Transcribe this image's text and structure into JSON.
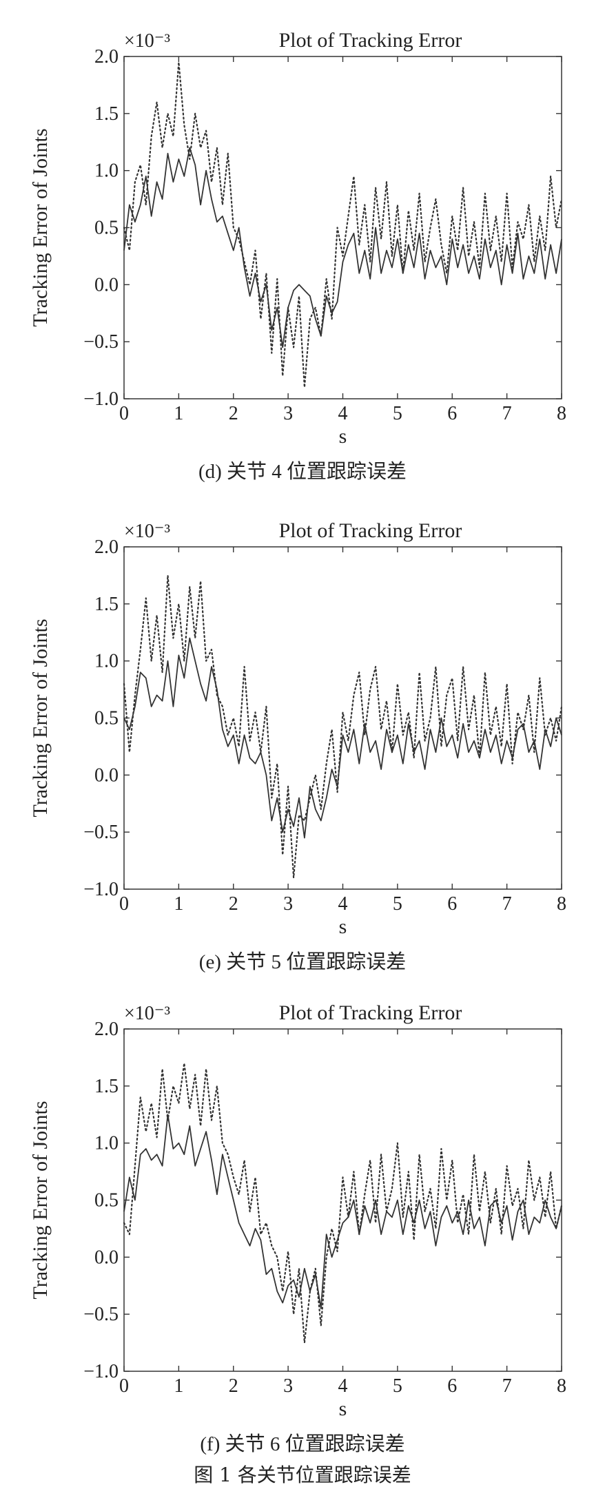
{
  "figure_caption": "图 1   各关节位置跟踪误差",
  "chart_data": [
    {
      "type": "line",
      "title": "Plot of Tracking Error",
      "scale_note": "×10⁻³",
      "xlabel": "s",
      "ylabel": "Tracking Error of Joints",
      "xlim": [
        0,
        8
      ],
      "ylim": [
        -1.0,
        2.0
      ],
      "xticks": [
        "0",
        "1",
        "2",
        "3",
        "4",
        "5",
        "6",
        "7",
        "8"
      ],
      "yticks": [
        "2.0",
        "1.5",
        "1.0",
        "0.5",
        "0.0",
        "−0.5",
        "−1.0"
      ],
      "grid": false,
      "caption": "(d) 关节 4 位置跟踪误差",
      "series": [
        {
          "style": "solid",
          "color": "#333333",
          "x": [
            0,
            0.1,
            0.2,
            0.3,
            0.4,
            0.5,
            0.6,
            0.7,
            0.8,
            0.9,
            1.0,
            1.1,
            1.2,
            1.3,
            1.4,
            1.5,
            1.6,
            1.7,
            1.8,
            1.9,
            2.0,
            2.1,
            2.2,
            2.3,
            2.4,
            2.5,
            2.6,
            2.7,
            2.8,
            2.9,
            3.0,
            3.1,
            3.2,
            3.3,
            3.4,
            3.5,
            3.6,
            3.7,
            3.8,
            3.9,
            4.0,
            4.1,
            4.2,
            4.3,
            4.4,
            4.5,
            4.6,
            4.7,
            4.8,
            4.9,
            5.0,
            5.1,
            5.2,
            5.3,
            5.4,
            5.5,
            5.6,
            5.7,
            5.8,
            5.9,
            6.0,
            6.1,
            6.2,
            6.3,
            6.4,
            6.5,
            6.6,
            6.7,
            6.8,
            6.9,
            7.0,
            7.1,
            7.2,
            7.3,
            7.4,
            7.5,
            7.6,
            7.7,
            7.8,
            7.9,
            8.0
          ],
          "y": [
            0.3,
            0.7,
            0.55,
            0.7,
            0.95,
            0.6,
            0.9,
            0.75,
            1.15,
            0.9,
            1.1,
            0.95,
            1.2,
            1.05,
            0.7,
            1.0,
            0.75,
            0.55,
            0.6,
            0.45,
            0.3,
            0.5,
            0.15,
            -0.1,
            0.1,
            -0.15,
            0.0,
            -0.4,
            -0.2,
            -0.55,
            -0.2,
            -0.05,
            0.0,
            -0.05,
            -0.1,
            -0.3,
            -0.45,
            -0.1,
            -0.25,
            -0.15,
            0.2,
            0.35,
            0.45,
            0.1,
            0.3,
            0.05,
            0.5,
            0.1,
            0.3,
            0.15,
            0.4,
            0.1,
            0.35,
            0.15,
            0.45,
            0.05,
            0.3,
            0.15,
            0.25,
            0.0,
            0.4,
            0.15,
            0.35,
            0.1,
            0.25,
            0.05,
            0.4,
            0.15,
            0.3,
            0.0,
            0.35,
            0.1,
            0.45,
            0.05,
            0.25,
            0.1,
            0.4,
            0.05,
            0.35,
            0.1,
            0.4
          ]
        },
        {
          "style": "dotted",
          "color": "#333333",
          "x": [
            0,
            0.1,
            0.2,
            0.3,
            0.4,
            0.5,
            0.6,
            0.7,
            0.8,
            0.9,
            1.0,
            1.1,
            1.2,
            1.3,
            1.4,
            1.5,
            1.6,
            1.7,
            1.8,
            1.9,
            2.0,
            2.1,
            2.2,
            2.3,
            2.4,
            2.5,
            2.6,
            2.7,
            2.8,
            2.9,
            3.0,
            3.1,
            3.2,
            3.3,
            3.4,
            3.5,
            3.6,
            3.7,
            3.8,
            3.9,
            4.0,
            4.1,
            4.2,
            4.3,
            4.4,
            4.5,
            4.6,
            4.7,
            4.8,
            4.9,
            5.0,
            5.1,
            5.2,
            5.3,
            5.4,
            5.5,
            5.6,
            5.7,
            5.8,
            5.9,
            6.0,
            6.1,
            6.2,
            6.3,
            6.4,
            6.5,
            6.6,
            6.7,
            6.8,
            6.9,
            7.0,
            7.1,
            7.2,
            7.3,
            7.4,
            7.5,
            7.6,
            7.7,
            7.8,
            7.9,
            8.0
          ],
          "y": [
            0.5,
            0.3,
            0.9,
            1.05,
            0.7,
            1.3,
            1.6,
            1.2,
            1.5,
            1.3,
            1.95,
            1.4,
            1.1,
            1.5,
            1.2,
            1.35,
            0.9,
            1.2,
            0.7,
            1.15,
            0.5,
            0.4,
            0.2,
            0.0,
            0.3,
            -0.3,
            0.1,
            -0.6,
            0.05,
            -0.8,
            -0.2,
            -0.55,
            -0.1,
            -0.9,
            -0.3,
            -0.2,
            -0.45,
            0.05,
            -0.3,
            0.5,
            0.25,
            0.6,
            0.95,
            0.35,
            0.7,
            0.2,
            0.85,
            0.4,
            0.9,
            0.25,
            0.7,
            0.1,
            0.65,
            0.3,
            0.8,
            0.2,
            0.5,
            0.75,
            0.35,
            0.1,
            0.6,
            0.3,
            0.85,
            0.25,
            0.55,
            0.15,
            0.8,
            0.3,
            0.6,
            0.2,
            0.8,
            0.15,
            0.55,
            0.4,
            0.7,
            0.2,
            0.6,
            0.3,
            0.95,
            0.5,
            0.75
          ]
        }
      ]
    },
    {
      "type": "line",
      "title": "Plot of Tracking Error",
      "scale_note": "×10⁻³",
      "xlabel": "s",
      "ylabel": "Tracking Error of Joints",
      "xlim": [
        0,
        8
      ],
      "ylim": [
        -1.0,
        2.0
      ],
      "xticks": [
        "0",
        "1",
        "2",
        "3",
        "4",
        "5",
        "6",
        "7",
        "8"
      ],
      "yticks": [
        "2.0",
        "1.5",
        "1.0",
        "0.5",
        "0.0",
        "−0.5",
        "−1.0"
      ],
      "grid": false,
      "caption": "(e) 关节 5 位置跟踪误差",
      "series": [
        {
          "style": "solid",
          "color": "#333333",
          "x": [
            0,
            0.1,
            0.2,
            0.3,
            0.4,
            0.5,
            0.6,
            0.7,
            0.8,
            0.9,
            1.0,
            1.1,
            1.2,
            1.3,
            1.4,
            1.5,
            1.6,
            1.7,
            1.8,
            1.9,
            2.0,
            2.1,
            2.2,
            2.3,
            2.4,
            2.5,
            2.6,
            2.7,
            2.8,
            2.9,
            3.0,
            3.1,
            3.2,
            3.3,
            3.4,
            3.5,
            3.6,
            3.7,
            3.8,
            3.9,
            4.0,
            4.1,
            4.2,
            4.3,
            4.4,
            4.5,
            4.6,
            4.7,
            4.8,
            4.9,
            5.0,
            5.1,
            5.2,
            5.3,
            5.4,
            5.5,
            5.6,
            5.7,
            5.8,
            5.9,
            6.0,
            6.1,
            6.2,
            6.3,
            6.4,
            6.5,
            6.6,
            6.7,
            6.8,
            6.9,
            7.0,
            7.1,
            7.2,
            7.3,
            7.4,
            7.5,
            7.6,
            7.7,
            7.8,
            7.9,
            8.0
          ],
          "y": [
            0.5,
            0.4,
            0.6,
            0.9,
            0.85,
            0.6,
            0.7,
            0.65,
            1.0,
            0.6,
            1.05,
            0.85,
            1.2,
            1.0,
            0.8,
            0.65,
            0.95,
            0.75,
            0.4,
            0.25,
            0.35,
            0.1,
            0.35,
            0.15,
            0.1,
            0.2,
            0.0,
            -0.4,
            -0.2,
            -0.5,
            -0.3,
            -0.45,
            -0.2,
            -0.55,
            -0.1,
            -0.3,
            -0.4,
            -0.2,
            0.05,
            -0.1,
            0.35,
            0.2,
            0.4,
            0.1,
            0.45,
            0.2,
            0.3,
            0.05,
            0.4,
            0.2,
            0.35,
            0.1,
            0.45,
            0.2,
            0.3,
            0.05,
            0.4,
            0.2,
            0.5,
            0.25,
            0.35,
            0.15,
            0.45,
            0.2,
            0.3,
            0.15,
            0.4,
            0.2,
            0.35,
            0.1,
            0.3,
            0.15,
            0.4,
            0.45,
            0.2,
            0.3,
            0.05,
            0.4,
            0.25,
            0.5,
            0.35
          ]
        },
        {
          "style": "dotted",
          "color": "#333333",
          "x": [
            0,
            0.1,
            0.2,
            0.3,
            0.4,
            0.5,
            0.6,
            0.7,
            0.8,
            0.9,
            1.0,
            1.1,
            1.2,
            1.3,
            1.4,
            1.5,
            1.6,
            1.7,
            1.8,
            1.9,
            2.0,
            2.1,
            2.2,
            2.3,
            2.4,
            2.5,
            2.6,
            2.7,
            2.8,
            2.9,
            3.0,
            3.1,
            3.2,
            3.3,
            3.4,
            3.5,
            3.6,
            3.7,
            3.8,
            3.9,
            4.0,
            4.1,
            4.2,
            4.3,
            4.4,
            4.5,
            4.6,
            4.7,
            4.8,
            4.9,
            5.0,
            5.1,
            5.2,
            5.3,
            5.4,
            5.5,
            5.6,
            5.7,
            5.8,
            5.9,
            6.0,
            6.1,
            6.2,
            6.3,
            6.4,
            6.5,
            6.6,
            6.7,
            6.8,
            6.9,
            7.0,
            7.1,
            7.2,
            7.3,
            7.4,
            7.5,
            7.6,
            7.7,
            7.8,
            7.9,
            8.0
          ],
          "y": [
            0.8,
            0.2,
            0.7,
            1.1,
            1.55,
            1.0,
            1.4,
            0.9,
            1.75,
            1.2,
            1.5,
            1.0,
            1.65,
            1.2,
            1.7,
            1.0,
            1.1,
            0.7,
            0.6,
            0.35,
            0.5,
            0.25,
            0.95,
            0.3,
            0.55,
            0.2,
            0.6,
            -0.2,
            0.1,
            -0.7,
            -0.1,
            -0.9,
            -0.35,
            -0.4,
            -0.2,
            0.0,
            -0.3,
            0.1,
            0.4,
            -0.15,
            0.55,
            0.3,
            0.7,
            0.9,
            0.35,
            0.75,
            0.95,
            0.4,
            0.65,
            0.2,
            0.8,
            0.35,
            0.55,
            0.15,
            0.9,
            0.3,
            0.5,
            0.95,
            0.25,
            0.7,
            0.85,
            0.3,
            0.95,
            0.4,
            0.7,
            0.15,
            0.9,
            0.35,
            0.6,
            0.25,
            0.8,
            0.1,
            0.55,
            0.4,
            0.7,
            0.2,
            0.85,
            0.35,
            0.5,
            0.3,
            0.6
          ]
        }
      ]
    },
    {
      "type": "line",
      "title": "Plot of Tracking Error",
      "scale_note": "×10⁻³",
      "xlabel": "s",
      "ylabel": "Tracking Error of Joints",
      "xlim": [
        0,
        8
      ],
      "ylim": [
        -1.0,
        2.0
      ],
      "xticks": [
        "0",
        "1",
        "2",
        "3",
        "4",
        "5",
        "6",
        "7",
        "8"
      ],
      "yticks": [
        "2.0",
        "1.5",
        "1.0",
        "0.5",
        "0.0",
        "−0.5",
        "−1.0"
      ],
      "grid": false,
      "caption": "(f) 关节 6 位置跟踪误差",
      "series": [
        {
          "style": "solid",
          "color": "#333333",
          "x": [
            0,
            0.1,
            0.2,
            0.3,
            0.4,
            0.5,
            0.6,
            0.7,
            0.8,
            0.9,
            1.0,
            1.1,
            1.2,
            1.3,
            1.4,
            1.5,
            1.6,
            1.7,
            1.8,
            1.9,
            2.0,
            2.1,
            2.2,
            2.3,
            2.4,
            2.5,
            2.6,
            2.7,
            2.8,
            2.9,
            3.0,
            3.1,
            3.2,
            3.3,
            3.4,
            3.5,
            3.6,
            3.7,
            3.8,
            3.9,
            4.0,
            4.1,
            4.2,
            4.3,
            4.4,
            4.5,
            4.6,
            4.7,
            4.8,
            4.9,
            5.0,
            5.1,
            5.2,
            5.3,
            5.4,
            5.5,
            5.6,
            5.7,
            5.8,
            5.9,
            6.0,
            6.1,
            6.2,
            6.3,
            6.4,
            6.5,
            6.6,
            6.7,
            6.8,
            6.9,
            7.0,
            7.1,
            7.2,
            7.3,
            7.4,
            7.5,
            7.6,
            7.7,
            7.8,
            7.9,
            8.0
          ],
          "y": [
            0.4,
            0.7,
            0.5,
            0.9,
            0.95,
            0.85,
            0.9,
            0.8,
            1.25,
            0.95,
            1.0,
            0.9,
            1.15,
            0.8,
            0.95,
            1.1,
            0.85,
            0.55,
            0.9,
            0.7,
            0.5,
            0.3,
            0.2,
            0.1,
            0.25,
            0.15,
            -0.15,
            -0.1,
            -0.3,
            -0.4,
            -0.25,
            -0.2,
            -0.35,
            -0.1,
            -0.3,
            -0.15,
            -0.45,
            0.2,
            0.0,
            0.15,
            0.3,
            0.35,
            0.5,
            0.2,
            0.45,
            0.3,
            0.5,
            0.2,
            0.4,
            0.35,
            0.5,
            0.2,
            0.45,
            0.3,
            0.5,
            0.25,
            0.4,
            0.1,
            0.35,
            0.45,
            0.3,
            0.4,
            0.2,
            0.5,
            0.25,
            0.35,
            0.1,
            0.45,
            0.5,
            0.3,
            0.45,
            0.15,
            0.4,
            0.5,
            0.2,
            0.35,
            0.3,
            0.5,
            0.35,
            0.25,
            0.45
          ]
        },
        {
          "style": "dotted",
          "color": "#333333",
          "x": [
            0,
            0.1,
            0.2,
            0.3,
            0.4,
            0.5,
            0.6,
            0.7,
            0.8,
            0.9,
            1.0,
            1.1,
            1.2,
            1.3,
            1.4,
            1.5,
            1.6,
            1.7,
            1.8,
            1.9,
            2.0,
            2.1,
            2.2,
            2.3,
            2.4,
            2.5,
            2.6,
            2.7,
            2.8,
            2.9,
            3.0,
            3.1,
            3.2,
            3.3,
            3.4,
            3.5,
            3.6,
            3.7,
            3.8,
            3.9,
            4.0,
            4.1,
            4.2,
            4.3,
            4.4,
            4.5,
            4.6,
            4.7,
            4.8,
            4.9,
            5.0,
            5.1,
            5.2,
            5.3,
            5.4,
            5.5,
            5.6,
            5.7,
            5.8,
            5.9,
            6.0,
            6.1,
            6.2,
            6.3,
            6.4,
            6.5,
            6.6,
            6.7,
            6.8,
            6.9,
            7.0,
            7.1,
            7.2,
            7.3,
            7.4,
            7.5,
            7.6,
            7.7,
            7.8,
            7.9,
            8.0
          ],
          "y": [
            0.3,
            0.2,
            0.8,
            1.4,
            1.1,
            1.35,
            1.05,
            1.65,
            1.2,
            1.5,
            1.35,
            1.7,
            1.3,
            1.6,
            1.15,
            1.65,
            1.2,
            1.5,
            1.0,
            0.9,
            0.7,
            0.55,
            0.85,
            0.4,
            0.7,
            0.2,
            0.3,
            0.1,
            0.0,
            -0.3,
            0.05,
            -0.5,
            -0.1,
            -0.75,
            -0.3,
            -0.1,
            -0.6,
            0.0,
            0.25,
            0.05,
            0.7,
            0.35,
            0.75,
            0.2,
            0.55,
            0.85,
            0.3,
            0.9,
            0.4,
            0.6,
            1.0,
            0.35,
            0.75,
            0.15,
            0.9,
            0.4,
            0.6,
            0.25,
            0.95,
            0.5,
            0.85,
            0.3,
            0.55,
            0.2,
            0.9,
            0.4,
            0.75,
            0.3,
            0.6,
            0.2,
            0.8,
            0.45,
            0.6,
            0.25,
            0.85,
            0.5,
            0.7,
            0.35,
            0.75,
            0.25,
            0.45
          ]
        }
      ]
    }
  ]
}
